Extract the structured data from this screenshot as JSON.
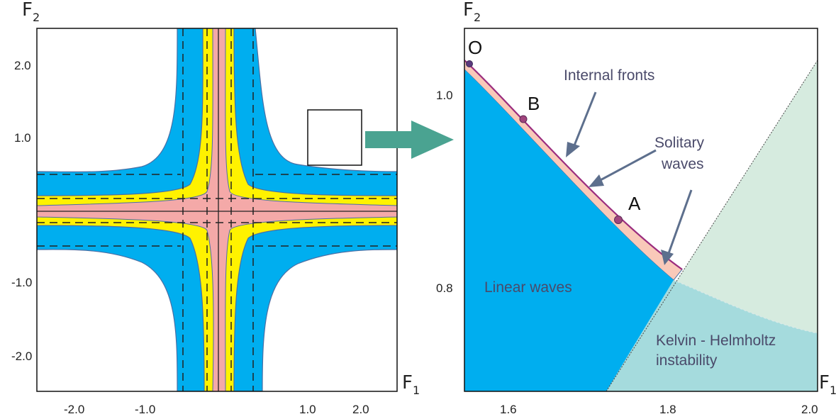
{
  "colors": {
    "blue": "#00aeef",
    "yellow": "#fff200",
    "pink": "#f4a9a8",
    "light_pink": "#f9c9b9",
    "green": "#d6ebdf",
    "teal": "#a5dbdd",
    "arrow_green": "#4aa391",
    "annotation_text": "#4a4a6a",
    "pointer": "#5d6f8d",
    "front_line": "#9b2c7e"
  },
  "left_panel": {
    "axis_x": {
      "name": "F",
      "sub": "1"
    },
    "axis_y": {
      "name": "F",
      "sub": "2"
    },
    "x_ticks": [
      "-2.0",
      "-1.0",
      "1.0",
      "2.0"
    ],
    "y_ticks": [
      "2.0",
      "1.0",
      "-1.0",
      "-2.0"
    ]
  },
  "right_panel": {
    "axis_x": {
      "name": "F",
      "sub": "1"
    },
    "axis_y": {
      "name": "F",
      "sub": "2"
    },
    "x_ticks": [
      "1.6",
      "1.8",
      "2.0"
    ],
    "y_ticks": [
      "1.0",
      "0.8"
    ],
    "points": [
      "O",
      "B",
      "A"
    ],
    "labels": {
      "internal_fronts": "Internal fronts",
      "solitary_line1": "Solitary",
      "solitary_line2": "waves",
      "linear_waves": "Linear waves",
      "kh_line1": "Kelvin - Helmholtz",
      "kh_line2": "instability"
    }
  }
}
